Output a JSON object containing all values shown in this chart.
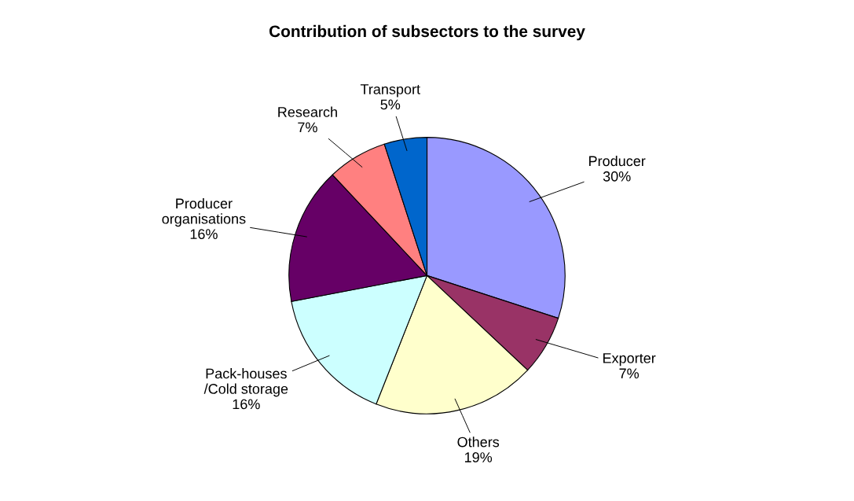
{
  "chart_data": {
    "type": "pie",
    "title": "Contribution of subsectors to the survey",
    "categories": [
      "Producer",
      "Exporter",
      "Others",
      "Pack-houses\n/Cold storage",
      "Producer\norganisations",
      "Research",
      "Transport"
    ],
    "values": [
      30,
      7,
      19,
      16,
      16,
      7,
      5
    ],
    "value_labels": [
      "30%",
      "7%",
      "19%",
      "16%",
      "16%",
      "7%",
      "5%"
    ],
    "colors": [
      "#9999ff",
      "#993366",
      "#ffffcc",
      "#ccffff",
      "#660066",
      "#ff8080",
      "#0066cc"
    ],
    "legend": false
  }
}
